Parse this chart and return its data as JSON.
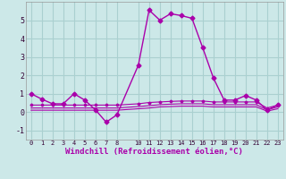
{
  "xlabel": "Windchill (Refroidissement éolien,°C)",
  "background_color": "#cce8e8",
  "grid_color": "#aad0d0",
  "line_color": "#aa00aa",
  "xlim": [
    -0.5,
    23.5
  ],
  "ylim": [
    -1.5,
    6.0
  ],
  "yticks": [
    -1,
    0,
    1,
    2,
    3,
    4,
    5
  ],
  "xticks": [
    0,
    1,
    2,
    3,
    4,
    5,
    6,
    7,
    8,
    10,
    11,
    12,
    13,
    14,
    15,
    16,
    17,
    18,
    19,
    20,
    21,
    22,
    23
  ],
  "main_x": [
    0,
    1,
    2,
    3,
    4,
    5,
    6,
    7,
    8,
    10,
    11,
    12,
    13,
    14,
    15,
    16,
    17,
    18,
    19,
    20,
    21,
    22,
    23
  ],
  "main_y": [
    1.0,
    0.7,
    0.45,
    0.45,
    1.0,
    0.65,
    0.12,
    -0.55,
    -0.15,
    2.55,
    5.55,
    5.0,
    5.35,
    5.25,
    5.1,
    3.5,
    1.85,
    0.65,
    0.65,
    0.9,
    0.65,
    0.1,
    0.38
  ],
  "flat1_x": [
    0,
    1,
    2,
    3,
    4,
    5,
    6,
    7,
    8,
    10,
    11,
    12,
    13,
    14,
    15,
    16,
    17,
    18,
    19,
    20,
    21,
    22,
    23
  ],
  "flat1_y": [
    0.38,
    0.38,
    0.38,
    0.38,
    0.38,
    0.38,
    0.38,
    0.38,
    0.38,
    0.45,
    0.52,
    0.55,
    0.58,
    0.6,
    0.6,
    0.6,
    0.55,
    0.55,
    0.55,
    0.55,
    0.55,
    0.22,
    0.38
  ],
  "flat2_x": [
    0,
    1,
    2,
    3,
    4,
    5,
    6,
    7,
    8,
    10,
    11,
    12,
    13,
    14,
    15,
    16,
    17,
    18,
    19,
    20,
    21,
    22,
    23
  ],
  "flat2_y": [
    0.22,
    0.22,
    0.22,
    0.22,
    0.22,
    0.22,
    0.22,
    0.22,
    0.22,
    0.3,
    0.35,
    0.4,
    0.43,
    0.45,
    0.45,
    0.45,
    0.4,
    0.4,
    0.4,
    0.4,
    0.4,
    0.12,
    0.28
  ],
  "flat3_x": [
    0,
    1,
    2,
    3,
    4,
    5,
    6,
    7,
    8,
    10,
    11,
    12,
    13,
    14,
    15,
    16,
    17,
    18,
    19,
    20,
    21,
    22,
    23
  ],
  "flat3_y": [
    0.1,
    0.1,
    0.1,
    0.1,
    0.1,
    0.1,
    0.1,
    0.1,
    0.1,
    0.18,
    0.22,
    0.28,
    0.3,
    0.32,
    0.32,
    0.32,
    0.28,
    0.28,
    0.28,
    0.28,
    0.28,
    0.05,
    0.18
  ]
}
